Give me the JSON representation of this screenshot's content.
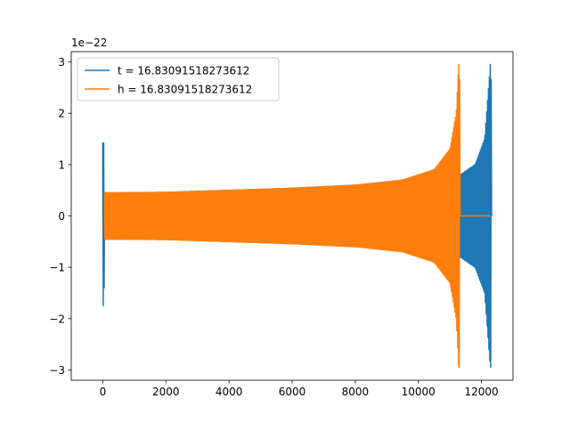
{
  "chart_data": {
    "type": "line",
    "title": "",
    "xlabel": "",
    "ylabel": "",
    "offset_text": "1e−22",
    "xlim": [
      -1000,
      13000
    ],
    "ylim": [
      -3.2,
      3.2
    ],
    "x_ticks": [
      0,
      2000,
      4000,
      6000,
      8000,
      10000,
      12000
    ],
    "x_tick_labels": [
      "0",
      "2000",
      "4000",
      "6000",
      "8000",
      "10000",
      "12000"
    ],
    "y_ticks": [
      3,
      2,
      1,
      0,
      -1,
      -2,
      -3
    ],
    "y_tick_labels": [
      "3",
      "2",
      "1",
      "0",
      "−1",
      "−2",
      "−3"
    ],
    "grid": false,
    "legend_position": "upper-left",
    "series": [
      {
        "name": "t = 16.83091518273612",
        "color": "#1f77b4",
        "signal": {
          "start": 0,
          "merger": 12280,
          "end": 12300,
          "initial_spike": 1.42,
          "initial_spike_min": -1.75,
          "envelope": [
            [
              0,
              0.45
            ],
            [
              2000,
              0.46
            ],
            [
              4000,
              0.5
            ],
            [
              6000,
              0.54
            ],
            [
              8000,
              0.6
            ],
            [
              10000,
              0.68
            ],
            [
              11280,
              0.78
            ],
            [
              11800,
              1.0
            ],
            [
              12100,
              1.5
            ],
            [
              12280,
              2.95
            ]
          ],
          "post_value": 0
        }
      },
      {
        "name": "h = 16.83091518273612",
        "color": "#ff7f0e",
        "signal": {
          "start": 0,
          "merger": 11280,
          "end": 12300,
          "envelope": [
            [
              0,
              0.45
            ],
            [
              2000,
              0.46
            ],
            [
              4000,
              0.5
            ],
            [
              6000,
              0.54
            ],
            [
              8000,
              0.6
            ],
            [
              9500,
              0.7
            ],
            [
              10500,
              0.9
            ],
            [
              11000,
              1.3
            ],
            [
              11200,
              2.0
            ],
            [
              11280,
              2.95
            ]
          ],
          "post_value": 0
        }
      }
    ]
  }
}
